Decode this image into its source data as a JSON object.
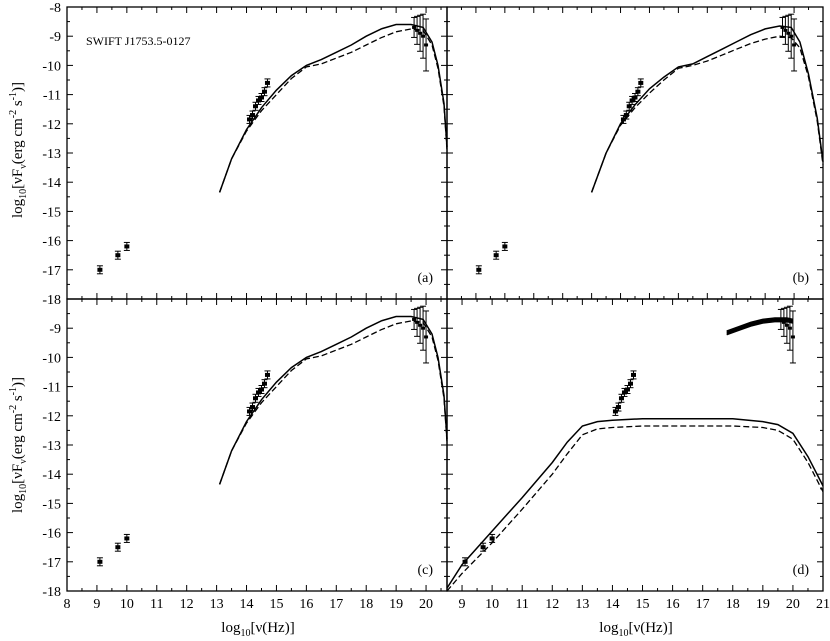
{
  "figure": {
    "source_label": "SWIFT J1753.5-0127",
    "xlabel": {
      "pre": "log",
      "sub": "10",
      "post": "[ν(Hz)]"
    },
    "ylabel": {
      "a": "log",
      "b": "10",
      "c": "[νF",
      "d": "ν",
      "e": "(erg cm",
      "f": "-2",
      "g": " s",
      "h": "-1",
      "i": ")]"
    }
  },
  "chart_data": [
    {
      "panel": "(a)",
      "type": "scatter+line",
      "xlim": [
        8,
        20.7
      ],
      "ylim": [
        -18,
        -8
      ],
      "grid": false,
      "xticks": [
        8,
        9,
        10,
        11,
        12,
        13,
        14,
        15,
        16,
        17,
        18,
        19,
        20
      ],
      "yticks": [
        -17,
        -16,
        -15,
        -14,
        -13,
        -12,
        -11,
        -10,
        -9,
        -8
      ],
      "observations": {
        "x": [
          9.1,
          9.7,
          10.0,
          14.1,
          14.2,
          14.3,
          14.4,
          14.5,
          14.6,
          14.7
        ],
        "y": [
          -17.0,
          -16.5,
          -16.2,
          -11.85,
          -11.7,
          -11.4,
          -11.2,
          -11.1,
          -10.9,
          -10.6
        ],
        "x_ray_band": [
          [
            19.6,
            -8.7
          ],
          [
            19.7,
            -8.8
          ],
          [
            19.8,
            -8.9
          ],
          [
            19.9,
            -9.0
          ],
          [
            20.0,
            -9.3
          ]
        ]
      },
      "series": [
        {
          "style": "solid",
          "x": [
            13.1,
            13.5,
            14,
            14.5,
            15,
            15.5,
            16,
            16.5,
            17,
            17.5,
            18,
            18.5,
            19,
            19.5,
            19.9,
            20.2,
            20.4,
            20.6,
            20.7
          ],
          "y": [
            -14.35,
            -13.2,
            -12.2,
            -11.45,
            -10.85,
            -10.35,
            -10.0,
            -9.8,
            -9.55,
            -9.3,
            -9.0,
            -8.75,
            -8.6,
            -8.6,
            -8.7,
            -9.2,
            -10.0,
            -11.3,
            -12.8
          ]
        },
        {
          "style": "dashed",
          "x": [
            13.1,
            13.5,
            14,
            14.5,
            15,
            15.5,
            16,
            16.5,
            17,
            17.5,
            18,
            18.5,
            19,
            19.5,
            19.9,
            20.2,
            20.4,
            20.6,
            20.7
          ],
          "y": [
            -14.35,
            -13.2,
            -12.25,
            -11.55,
            -11.0,
            -10.45,
            -10.05,
            -9.95,
            -9.75,
            -9.55,
            -9.3,
            -9.05,
            -8.85,
            -8.75,
            -8.8,
            -9.3,
            -10.1,
            -11.4,
            -12.9
          ]
        }
      ]
    },
    {
      "panel": "(b)",
      "type": "scatter+line",
      "xlim": [
        8,
        21
      ],
      "ylim": [
        -18,
        -8
      ],
      "grid": false,
      "observations": {
        "x": [
          9.1,
          9.7,
          10.0,
          14.1,
          14.2,
          14.3,
          14.4,
          14.5,
          14.6,
          14.7
        ],
        "y": [
          -17.0,
          -16.5,
          -16.2,
          -11.85,
          -11.7,
          -11.4,
          -11.2,
          -11.1,
          -10.9,
          -10.6
        ],
        "x_ray_band": [
          [
            19.6,
            -8.7
          ],
          [
            19.7,
            -8.8
          ],
          [
            19.8,
            -8.9
          ],
          [
            19.9,
            -9.0
          ],
          [
            20.0,
            -9.3
          ]
        ]
      },
      "series": [
        {
          "style": "solid",
          "x": [
            13.0,
            13.5,
            14,
            14.5,
            15,
            15.5,
            16,
            16.5,
            17,
            17.5,
            18,
            18.5,
            19,
            19.5,
            19.9,
            20.2,
            20.5,
            20.8,
            21.0
          ],
          "y": [
            -14.35,
            -13.0,
            -12.0,
            -11.35,
            -10.8,
            -10.4,
            -10.05,
            -9.95,
            -9.7,
            -9.45,
            -9.2,
            -8.95,
            -8.75,
            -8.65,
            -8.7,
            -9.2,
            -10.3,
            -11.8,
            -13.3
          ]
        },
        {
          "style": "dashed",
          "x": [
            13.0,
            13.5,
            14,
            14.5,
            15,
            15.5,
            16,
            16.5,
            17,
            17.5,
            18,
            18.5,
            19,
            19.5,
            19.9,
            20.2,
            20.5,
            20.8,
            21.0
          ],
          "y": [
            -14.35,
            -13.0,
            -12.05,
            -11.45,
            -10.95,
            -10.5,
            -10.1,
            -10.0,
            -9.85,
            -9.65,
            -9.45,
            -9.25,
            -9.1,
            -9.0,
            -9.05,
            -9.4,
            -10.4,
            -11.9,
            -13.4
          ]
        }
      ]
    },
    {
      "panel": "(c)",
      "type": "scatter+line",
      "xlim": [
        8,
        20.7
      ],
      "ylim": [
        -18,
        -8
      ],
      "grid": false,
      "observations": {
        "x": [
          9.1,
          9.7,
          10.0,
          14.1,
          14.2,
          14.3,
          14.4,
          14.5,
          14.6,
          14.7
        ],
        "y": [
          -17.0,
          -16.5,
          -16.2,
          -11.85,
          -11.7,
          -11.4,
          -11.2,
          -11.1,
          -10.9,
          -10.6
        ],
        "x_ray_band": [
          [
            19.6,
            -8.7
          ],
          [
            19.7,
            -8.8
          ],
          [
            19.8,
            -8.9
          ],
          [
            19.9,
            -9.0
          ],
          [
            20.0,
            -9.3
          ]
        ]
      },
      "series": [
        {
          "style": "solid",
          "x": [
            13.1,
            13.5,
            14,
            14.5,
            15,
            15.5,
            16,
            16.5,
            17,
            17.5,
            18,
            18.5,
            19,
            19.5,
            19.9,
            20.2,
            20.4,
            20.6,
            20.7
          ],
          "y": [
            -14.35,
            -13.2,
            -12.2,
            -11.45,
            -10.85,
            -10.35,
            -10.0,
            -9.8,
            -9.55,
            -9.3,
            -9.0,
            -8.75,
            -8.6,
            -8.6,
            -8.7,
            -9.2,
            -10.0,
            -11.3,
            -12.8
          ]
        },
        {
          "style": "dashed",
          "x": [
            13.1,
            13.5,
            14,
            14.5,
            15,
            15.5,
            16,
            16.5,
            17,
            17.5,
            18,
            18.5,
            19,
            19.5,
            19.9,
            20.2,
            20.4,
            20.6,
            20.7
          ],
          "y": [
            -14.35,
            -13.2,
            -12.25,
            -11.55,
            -11.0,
            -10.45,
            -10.05,
            -9.95,
            -9.75,
            -9.55,
            -9.3,
            -9.05,
            -8.85,
            -8.75,
            -8.8,
            -9.3,
            -10.1,
            -11.4,
            -12.9
          ]
        }
      ]
    },
    {
      "panel": "(d)",
      "type": "scatter+line",
      "xlim": [
        8.5,
        21
      ],
      "ylim": [
        -18,
        -8
      ],
      "xticks": [
        9,
        10,
        11,
        12,
        13,
        14,
        15,
        16,
        17,
        18,
        19,
        20,
        21
      ],
      "grid": false,
      "observations": {
        "x": [
          9.1,
          9.7,
          10.0,
          14.1,
          14.2,
          14.3,
          14.4,
          14.5,
          14.6,
          14.7
        ],
        "y": [
          -17.0,
          -16.5,
          -16.2,
          -11.85,
          -11.7,
          -11.4,
          -11.2,
          -11.1,
          -10.9,
          -10.6
        ],
        "x_ray_band": [
          [
            19.6,
            -8.7
          ],
          [
            19.7,
            -8.8
          ],
          [
            19.8,
            -8.9
          ],
          [
            19.9,
            -9.0
          ],
          [
            20.0,
            -9.3
          ]
        ]
      },
      "series": [
        {
          "style": "solid",
          "x": [
            8.5,
            9,
            10,
            11,
            12,
            12.5,
            13,
            13.5,
            14,
            15,
            16,
            17,
            18,
            19,
            19.5,
            20,
            20.5,
            21
          ],
          "y": [
            -17.9,
            -17.1,
            -15.95,
            -14.8,
            -13.6,
            -12.9,
            -12.35,
            -12.2,
            -12.15,
            -12.1,
            -12.1,
            -12.1,
            -12.1,
            -12.2,
            -12.3,
            -12.6,
            -13.4,
            -14.4
          ]
        },
        {
          "style": "dashed",
          "x": [
            8.5,
            9,
            10,
            11,
            12,
            12.5,
            13,
            13.5,
            14,
            15,
            16,
            17,
            18,
            19,
            19.5,
            20,
            20.5,
            21
          ],
          "y": [
            -18.0,
            -17.4,
            -16.35,
            -15.2,
            -14.0,
            -13.3,
            -12.65,
            -12.45,
            -12.4,
            -12.35,
            -12.35,
            -12.35,
            -12.35,
            -12.4,
            -12.5,
            -12.8,
            -13.6,
            -14.6
          ]
        },
        {
          "style": "solid-band",
          "x": [
            17.8,
            18.2,
            18.6,
            19.0,
            19.4,
            19.8,
            20.0
          ],
          "y": [
            -9.1,
            -8.95,
            -8.8,
            -8.7,
            -8.65,
            -8.65,
            -8.7
          ]
        }
      ]
    }
  ]
}
